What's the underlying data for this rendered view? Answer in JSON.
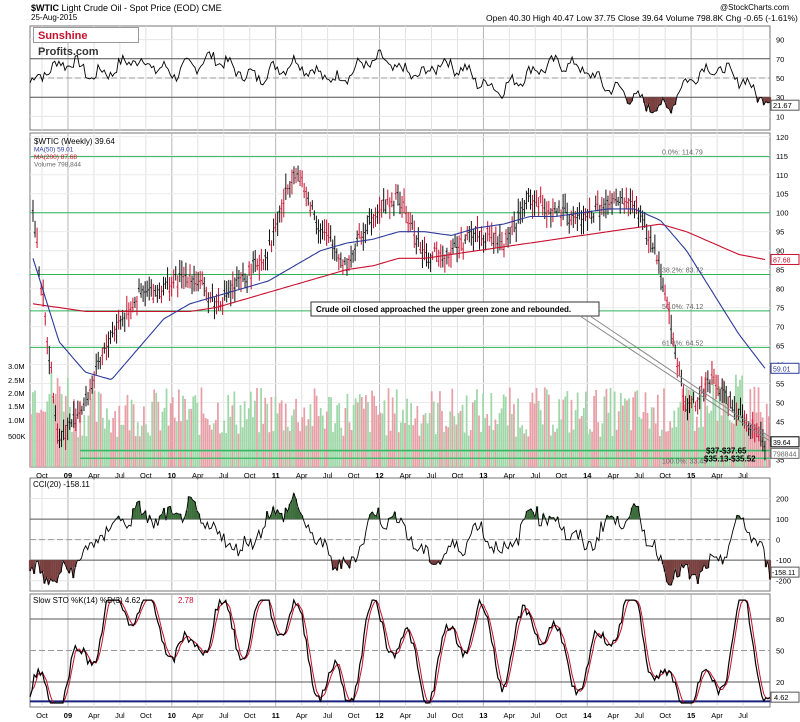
{
  "header": {
    "symbol": "$WTIC",
    "name": "Light Crude Oil - Spot Price (EOD)",
    "exchange": "CME",
    "date": "25-Aug-2015",
    "copyright": "@StockCharts.com",
    "quote": "Open 40.30  High 40.47  Low 37.75  Close 39.64  Volume 798.8K  Chg -0.65 (-1.61%)"
  },
  "logo": {
    "part1": "Sunshine",
    "part2": "Profits.com"
  },
  "rsi_panel": {
    "label": "RSI(14) 21.67",
    "ticks": [
      "90",
      "70",
      "50",
      "30",
      "10"
    ],
    "last_value": "21.67",
    "levels": [
      70,
      30
    ]
  },
  "price_panel": {
    "legend": [
      {
        "text": "$WTIC (Weekly) 39.64",
        "color": "#000000"
      },
      {
        "text": "MA(50) 59.01",
        "color": "#2b3a9a"
      },
      {
        "text": "MA(200) 87.68",
        "color": "#c8102e"
      },
      {
        "text": "Volume 798,844",
        "color": "#666666"
      }
    ],
    "price_ticks": [
      "120",
      "115",
      "110",
      "105",
      "100",
      "95",
      "90",
      "85",
      "80",
      "75",
      "70",
      "65",
      "60",
      "55",
      "50",
      "45",
      "40",
      "35"
    ],
    "volume_ticks": [
      "3.0M",
      "2.5M",
      "2.0M",
      "1.5M",
      "1.0M",
      "500K"
    ],
    "fib_labels": [
      "0.0%: 114.79",
      "38.2%: 83.72",
      "50.0%: 74.12",
      "61.8%: 64.52",
      "100.0%: 33.45"
    ],
    "horizontal_lines": [
      114.79,
      100,
      83.72,
      74.12,
      64.52
    ],
    "value_boxes": [
      "87.68",
      "59.01",
      "39.64",
      "798844"
    ],
    "annotation": "Crude oil closed approached the upper green zone and rebounded.",
    "zone_labels": [
      "$37-$37.65",
      "$35.13-$35.52"
    ]
  },
  "cci_panel": {
    "label": "CCI(20) -158.11",
    "ticks": [
      "200",
      "100",
      "0",
      "-100",
      "-200"
    ],
    "last_value": "-158.11"
  },
  "sto_panel": {
    "label_main": "Slow STO %K(14) %D(3) 4.62,",
    "label_d": "2.78",
    "ticks": [
      "80",
      "50",
      "20"
    ],
    "last_value": "4.62"
  },
  "x_axis": {
    "labels": [
      "Oct",
      "09",
      "Apr",
      "Jul",
      "Oct",
      "10",
      "Apr",
      "Jul",
      "Oct",
      "11",
      "Apr",
      "Jul",
      "Oct",
      "12",
      "Apr",
      "Jul",
      "Oct",
      "13",
      "Apr",
      "Jul",
      "Oct",
      "14",
      "Apr",
      "Jul",
      "Oct",
      "15",
      "Apr",
      "Jul"
    ]
  },
  "colors": {
    "price_bar": "#111111",
    "down_candle": "#c8102e",
    "ma50": "#2b3a9a",
    "ma200": "#c8102e",
    "fib_line": "#2bb55a",
    "volume_up": "#9fd7a8",
    "volume_down": "#e8a0a8",
    "cci_fill_up": "#3c6e3c",
    "cci_fill_down": "#7a4040",
    "rsi_fill": "#7a4040",
    "sto_k": "#000000",
    "sto_d": "#c8102e",
    "sto_line": "#1a237e"
  },
  "chart_data": [
    {
      "type": "line",
      "title": "RSI(14) 21.67",
      "ylim": [
        0,
        100
      ],
      "series": [
        {
          "name": "RSI(14)",
          "values": [
            45,
            60,
            68,
            52,
            58,
            70,
            62,
            55,
            64,
            72,
            58,
            50,
            60,
            66,
            54,
            48,
            62,
            70,
            58,
            52,
            66,
            60,
            44,
            38,
            52,
            62,
            66,
            58,
            42,
            34,
            22,
            18,
            48,
            60,
            56,
            42,
            22
          ]
        }
      ]
    },
    {
      "type": "line",
      "title": "$WTIC (Weekly) 39.64",
      "ylim": [
        33,
        121
      ],
      "x": [
        "Oct 2008",
        "Jan 2009",
        "Apr 2009",
        "Jul 2009",
        "Oct 2009",
        "Jan 2010",
        "Apr 2010",
        "Jul 2010",
        "Oct 2010",
        "Jan 2011",
        "Apr 2011",
        "Jul 2011",
        "Oct 2011",
        "Jan 2012",
        "Apr 2012",
        "Jul 2012",
        "Oct 2012",
        "Jan 2013",
        "Apr 2013",
        "Jul 2013",
        "Oct 2013",
        "Jan 2014",
        "Apr 2014",
        "Jul 2014",
        "Oct 2014",
        "Jan 2015",
        "Apr 2015",
        "Jul 2015",
        "Aug 2015"
      ],
      "series": [
        {
          "name": "$WTIC",
          "values": [
            100,
            40,
            50,
            68,
            78,
            80,
            84,
            76,
            82,
            90,
            112,
            96,
            86,
            100,
            104,
            88,
            90,
            95,
            92,
            104,
            100,
            98,
            102,
            103,
            86,
            48,
            56,
            48,
            39.64
          ]
        },
        {
          "name": "MA(50)",
          "values": [
            88,
            66,
            58,
            56,
            64,
            72,
            76,
            78,
            80,
            82,
            86,
            90,
            92,
            93,
            95,
            95,
            94,
            96,
            97,
            99,
            99,
            100,
            101,
            101,
            98,
            90,
            79,
            68,
            59.01
          ]
        },
        {
          "name": "MA(200)",
          "values": [
            76,
            75,
            74,
            74,
            74,
            74,
            74,
            75,
            77,
            79,
            81,
            83,
            85,
            86,
            88,
            88,
            89,
            90,
            91,
            92,
            93,
            94,
            95,
            96,
            97,
            95,
            92,
            89,
            87.68
          ]
        }
      ]
    },
    {
      "type": "line",
      "title": "CCI(20) -158.11",
      "ylim": [
        -250,
        300
      ],
      "series": [
        {
          "name": "CCI(20)",
          "values": [
            -150,
            -200,
            -80,
            60,
            130,
            90,
            150,
            40,
            -60,
            100,
            180,
            -40,
            -150,
            120,
            90,
            -100,
            -60,
            60,
            -80,
            150,
            80,
            -40,
            100,
            120,
            -150,
            -180,
            -120,
            110,
            -158.11
          ]
        }
      ]
    },
    {
      "type": "line",
      "title": "Slow STO %K(14) %D(3) 4.62, 2.78",
      "ylim": [
        0,
        100
      ],
      "series": [
        {
          "name": "%K(14)",
          "values": [
            10,
            5,
            40,
            90,
            95,
            70,
            40,
            85,
            60,
            90,
            80,
            20,
            10,
            85,
            60,
            15,
            60,
            80,
            30,
            90,
            50,
            20,
            80,
            85,
            10,
            5,
            20,
            90,
            4.62
          ]
        },
        {
          "name": "%D(3)",
          "values": [
            12,
            7,
            35,
            85,
            93,
            72,
            45,
            80,
            62,
            87,
            82,
            25,
            12,
            80,
            62,
            18,
            58,
            78,
            33,
            88,
            52,
            22,
            78,
            83,
            12,
            6,
            18,
            88,
            2.78
          ]
        }
      ]
    }
  ]
}
